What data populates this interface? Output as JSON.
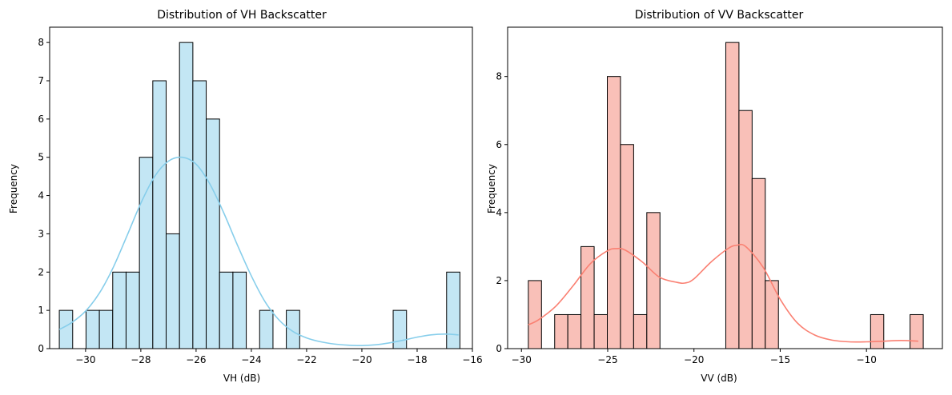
{
  "chart_data": [
    {
      "type": "bar",
      "title": "Distribution of VH Backscatter",
      "xlabel": "VH (dB)",
      "ylabel": "Frequency",
      "xlim": [
        -31.3,
        -16.0
      ],
      "ylim": [
        0,
        8.4
      ],
      "xticks": [
        -30,
        -28,
        -26,
        -24,
        -22,
        -20,
        -18,
        -16
      ],
      "yticks": [
        0,
        1,
        2,
        3,
        4,
        5,
        6,
        7,
        8
      ],
      "bin_start": -30.95,
      "bin_width": 0.4833,
      "counts": [
        1,
        0,
        1,
        1,
        2,
        2,
        5,
        7,
        3,
        8,
        7,
        6,
        2,
        2,
        0,
        1,
        0,
        1,
        0,
        0,
        0,
        0,
        0,
        0,
        0,
        1,
        0,
        0,
        0,
        2
      ],
      "bar_color": "#87ceeb",
      "bar_fill": "#c3e6f4",
      "edge_color": "#000000",
      "kde": {
        "x": [
          -30.95,
          -30.5,
          -30,
          -29.5,
          -29,
          -28.5,
          -28,
          -27.5,
          -27,
          -26.5,
          -26,
          -25.5,
          -25,
          -24.5,
          -24,
          -23.5,
          -23,
          -22.5,
          -22,
          -21.5,
          -21,
          -20.5,
          -20,
          -19.5,
          -19,
          -18.5,
          -18,
          -17.5,
          -17,
          -16.5
        ],
        "y": [
          0.5,
          0.68,
          0.98,
          1.45,
          2.12,
          2.95,
          3.8,
          4.5,
          4.9,
          5.0,
          4.82,
          4.3,
          3.55,
          2.7,
          1.9,
          1.22,
          0.75,
          0.45,
          0.28,
          0.18,
          0.12,
          0.09,
          0.08,
          0.1,
          0.15,
          0.22,
          0.3,
          0.36,
          0.38,
          0.36
        ]
      }
    },
    {
      "type": "bar",
      "title": "Distribution of VV Backscatter",
      "xlabel": "VV (dB)",
      "ylabel": "Frequency",
      "xlim": [
        -30.8,
        -5.6
      ],
      "ylim": [
        0,
        9.45
      ],
      "xticks": [
        -30,
        -25,
        -20,
        -15,
        -10
      ],
      "yticks": [
        0,
        2,
        4,
        6,
        8
      ],
      "bin_start": -29.6,
      "bin_width": 0.763,
      "counts": [
        2,
        0,
        1,
        1,
        3,
        1,
        8,
        6,
        1,
        4,
        0,
        0,
        0,
        0,
        0,
        9,
        7,
        5,
        2,
        0,
        0,
        0,
        0,
        0,
        0,
        0,
        1,
        0,
        0,
        1
      ],
      "bar_color": "#fa8072",
      "bar_fill": "#f9c0b8",
      "edge_color": "#000000",
      "kde": {
        "x": [
          -29.6,
          -29,
          -28,
          -27,
          -26,
          -25,
          -24.5,
          -24,
          -23,
          -22,
          -21,
          -20.5,
          -20,
          -19,
          -18,
          -17.5,
          -17,
          -16,
          -15,
          -14,
          -13,
          -12,
          -11,
          -10,
          -9,
          -8,
          -7
        ],
        "y": [
          0.7,
          0.85,
          1.25,
          1.85,
          2.5,
          2.88,
          2.94,
          2.9,
          2.55,
          2.1,
          1.95,
          1.93,
          2.05,
          2.55,
          2.95,
          3.04,
          3.0,
          2.4,
          1.45,
          0.75,
          0.4,
          0.25,
          0.2,
          0.2,
          0.22,
          0.24,
          0.22
        ]
      }
    }
  ]
}
